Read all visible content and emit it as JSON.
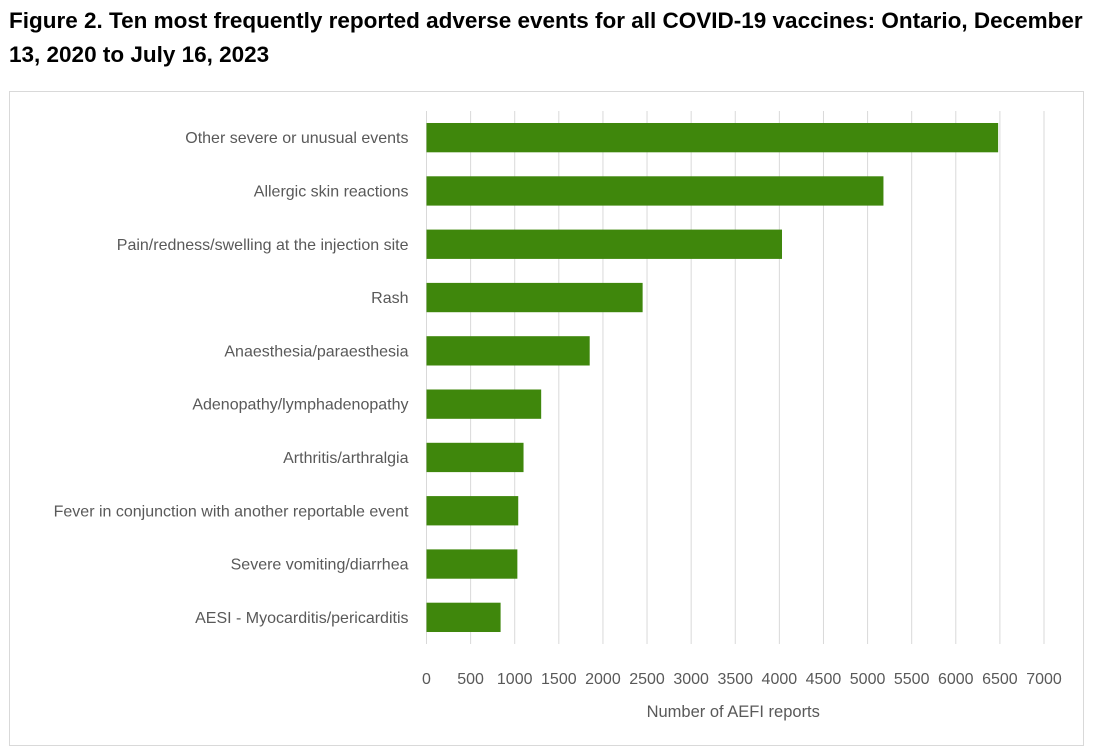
{
  "figure": {
    "title": "Figure 2. Ten most frequently reported adverse events for all COVID-19 vaccines: Ontario, December 13, 2020 to July 16, 2023"
  },
  "chart_data": {
    "type": "bar",
    "orientation": "horizontal",
    "title": "Figure 2. Ten most frequently reported adverse events for all COVID-19 vaccines: Ontario, December 13, 2020 to July 16, 2023",
    "xlabel": "Number of AEFI reports",
    "ylabel": "",
    "xlim": [
      0,
      7000
    ],
    "xticks": [
      0,
      500,
      1000,
      1500,
      2000,
      2500,
      3000,
      3500,
      4000,
      4500,
      5000,
      5500,
      6000,
      6500,
      7000
    ],
    "grid": "vertical",
    "legend": "none",
    "bar_color": "#3f870c",
    "gridline_color": "#d9d9d9",
    "categories": [
      "Other severe or unusual events",
      "Allergic skin reactions",
      "Pain/redness/swelling at the injection site",
      "Rash",
      "Anaesthesia/paraesthesia",
      "Adenopathy/lymphadenopathy",
      "Arthritis/arthralgia",
      "Fever in conjunction with another reportable event",
      "Severe vomiting/diarrhea",
      "AESI - Myocarditis/pericarditis"
    ],
    "values": [
      6480,
      5180,
      4030,
      2450,
      1850,
      1300,
      1100,
      1040,
      1030,
      840
    ]
  }
}
